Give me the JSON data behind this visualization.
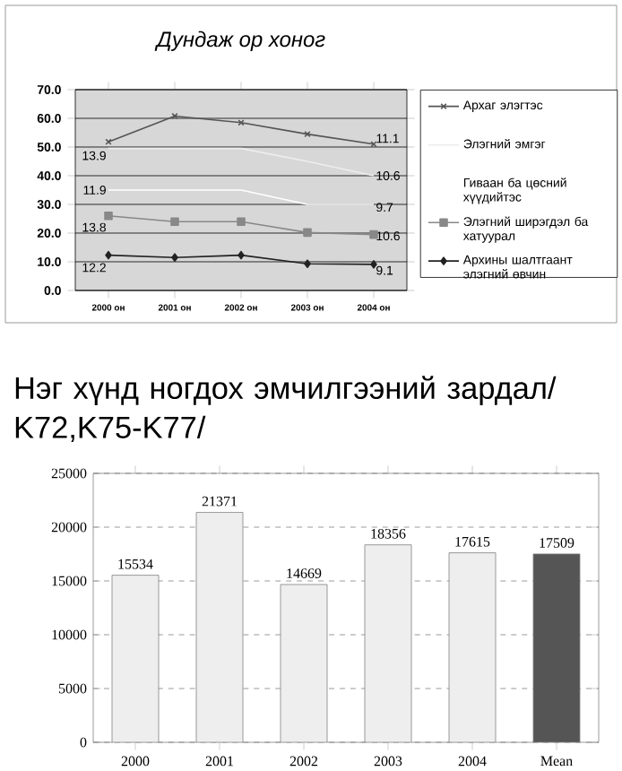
{
  "chart_data": [
    {
      "type": "line",
      "title": "*Дундаж ор хоног*",
      "categories": [
        "2000 он",
        "2001 он",
        "2002 он",
        "2003 он",
        "2004 он"
      ],
      "series": [
        {
          "name": "Архаг элэгтэс",
          "color": "#555555",
          "marker": "cross",
          "values": [
            51.8,
            60.8,
            58.5,
            54.5,
            51.0
          ]
        },
        {
          "name": "Элэгний эмгэг",
          "color": "#eeeeee",
          "marker": "none",
          "values": [
            49.5,
            49.5,
            49.5,
            45.0,
            40.0
          ]
        },
        {
          "name": "Гиваан ба цөсний хүүдийтэс",
          "color": "#ffffff",
          "marker": "none",
          "values": [
            35.0,
            35.0,
            35.0,
            30.0,
            30.0
          ]
        },
        {
          "name": "Элэгний ширэгдэл ба хатуурал",
          "color": "#888888",
          "marker": "square",
          "values": [
            26.0,
            24.0,
            24.0,
            20.2,
            19.5
          ]
        },
        {
          "name": "Архины шалтгаант элэгний өвчин",
          "color": "#222222",
          "marker": "diamond",
          "values": [
            12.3,
            11.5,
            12.3,
            9.3,
            9.1
          ]
        }
      ],
      "annotations": [
        {
          "text": "13.9",
          "x": "2000 он",
          "y": 47
        },
        {
          "text": "11.9",
          "x": "2000 он",
          "y": 35
        },
        {
          "text": "13.8",
          "x": "2000 он",
          "y": 22
        },
        {
          "text": "12.2",
          "x": "2000 он",
          "y": 8
        },
        {
          "text": "11.1",
          "x": "2004 он",
          "y": 53
        },
        {
          "text": "10.6",
          "x": "2004 он",
          "y": 40
        },
        {
          "text": "9.7",
          "x": "2004 он",
          "y": 29
        },
        {
          "text": "10.6",
          "x": "2004 он",
          "y": 19
        },
        {
          "text": "9.1",
          "x": "2004 он",
          "y": 7
        }
      ],
      "ylim": [
        0,
        70
      ],
      "yticks": [
        {
          "value": 0,
          "label": "0.0"
        },
        {
          "value": 10,
          "label": "10.0"
        },
        {
          "value": 20,
          "label": "20.0"
        },
        {
          "value": 30,
          "label": "30.0"
        },
        {
          "value": 40,
          "label": "40.0"
        },
        {
          "value": 50,
          "label": "50.0"
        },
        {
          "value": 60,
          "label": "60.0"
        },
        {
          "value": 70,
          "label": "70.0"
        }
      ],
      "grid": "y",
      "legend": "right",
      "line_style": "solid"
    },
    {
      "type": "bar",
      "title": "Нэг хүнд ногдох эмчилгээний зардал/ K72,K75-K77/",
      "categories": [
        "2000",
        "2001",
        "2002",
        "2003",
        "2004",
        "Mean"
      ],
      "values": [
        15534,
        21371,
        14669,
        18356,
        17615,
        17509
      ],
      "colors": [
        "#eeeeee",
        "#eeeeee",
        "#eeeeee",
        "#eeeeee",
        "#eeeeee",
        "#555555"
      ],
      "ylim": [
        0,
        25000
      ],
      "yticks": [
        0,
        5000,
        10000,
        15000,
        20000,
        25000
      ],
      "grid": "y",
      "data_labels": true
    }
  ]
}
